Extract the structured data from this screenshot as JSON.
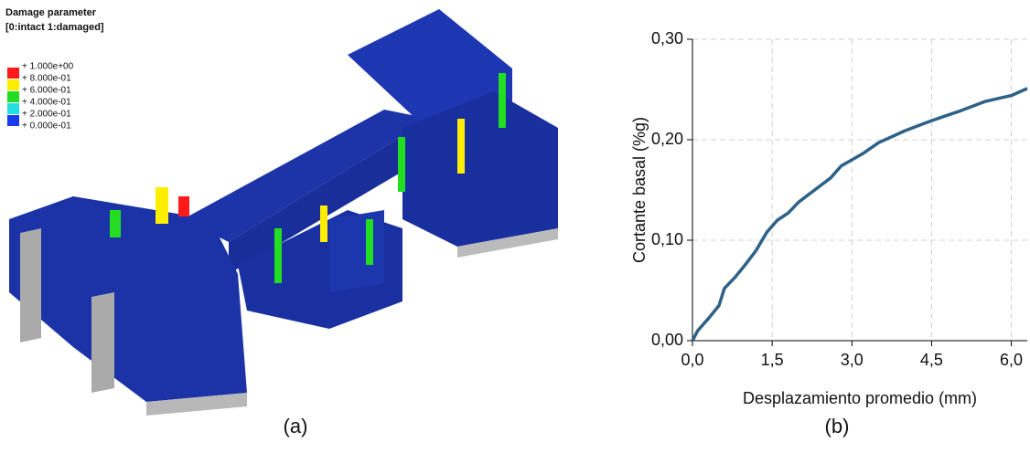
{
  "figure_a": {
    "title": "Damage parameter",
    "subtitle": "[0:intact   1:damaged]",
    "legend_labels": [
      "+ 1.000e+00",
      "+ 8.000e-01",
      "+ 6.000e-01",
      "+ 4.000e-01",
      "+ 2.000e-01",
      "+ 0.000e-01"
    ],
    "legend_colors": [
      "#ff1a1a",
      "#ffee00",
      "#22dd22",
      "#22e0e0",
      "#1a3cf0"
    ],
    "caption": "(a)"
  },
  "chart_data": {
    "type": "line",
    "x_label": "Desplazamiento promedio (mm)",
    "y_label": "Cortante basal (%g)",
    "x": [
      0,
      0.1,
      0.3,
      0.5,
      0.6,
      0.8,
      1.0,
      1.2,
      1.4,
      1.6,
      1.8,
      2.0,
      2.3,
      2.6,
      2.8,
      3.0,
      3.2,
      3.5,
      4.0,
      4.5,
      5.0,
      5.5,
      6.0,
      6.3
    ],
    "values": [
      0,
      0.01,
      0.022,
      0.035,
      0.052,
      0.063,
      0.076,
      0.09,
      0.108,
      0.12,
      0.127,
      0.138,
      0.15,
      0.162,
      0.174,
      0.18,
      0.186,
      0.197,
      0.209,
      0.219,
      0.228,
      0.238,
      0.244,
      0.251
    ],
    "color": "#2e6188",
    "xlim": [
      0,
      6.3
    ],
    "ylim": [
      0,
      0.3
    ],
    "xticks": [
      {
        "value": 0,
        "label": "0,0"
      },
      {
        "value": 1.5,
        "label": "1,5"
      },
      {
        "value": 3,
        "label": "3,0"
      },
      {
        "value": 4.5,
        "label": "4,5"
      },
      {
        "value": 6,
        "label": "6,0"
      }
    ],
    "yticks": [
      {
        "value": 0,
        "label": "0,00"
      },
      {
        "value": 0.1,
        "label": "0,10"
      },
      {
        "value": 0.2,
        "label": "0,20"
      },
      {
        "value": 0.3,
        "label": "0,30"
      }
    ],
    "grid": true,
    "caption": "(b)"
  }
}
